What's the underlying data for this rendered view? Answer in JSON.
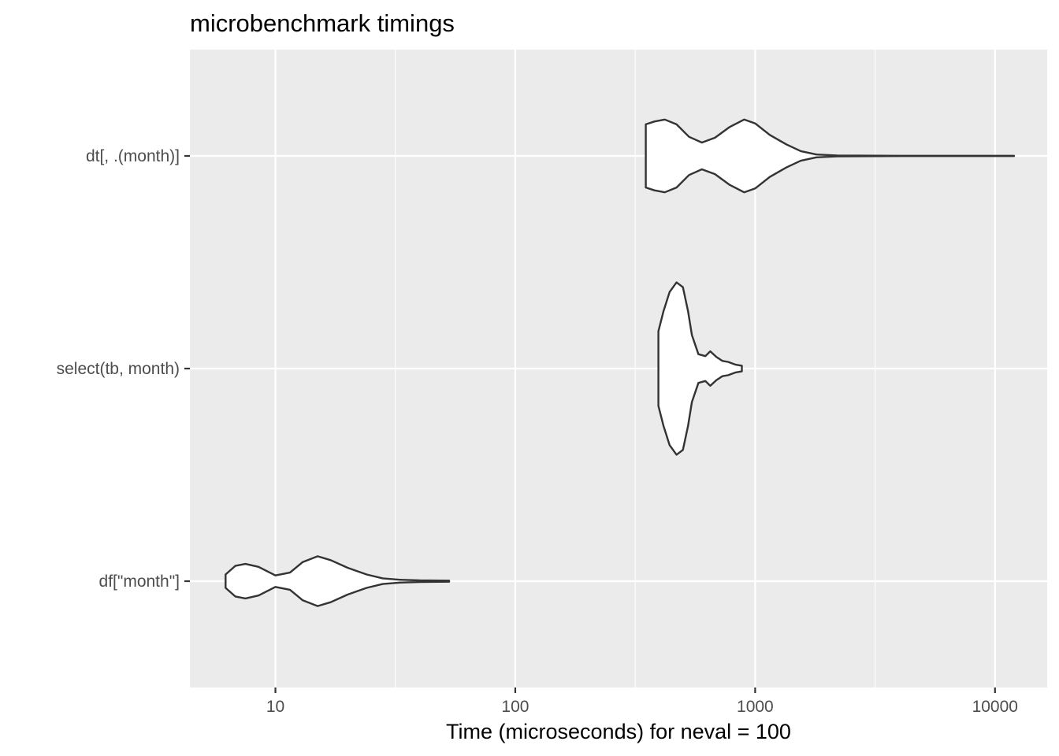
{
  "chart_data": {
    "type": "violin",
    "title": "microbenchmark timings",
    "xlabel": "Time (microseconds) for neval = 100",
    "ylabel": "",
    "x_scale": "log10",
    "xlim": [
      4.4,
      16500
    ],
    "x_ticks": [
      {
        "value": 10,
        "label": "10"
      },
      {
        "value": 100,
        "label": "100"
      },
      {
        "value": 1000,
        "label": "1000"
      },
      {
        "value": 10000,
        "label": "10000"
      }
    ],
    "x_minor_ticks": [
      31.6,
      316.2,
      3162.3
    ],
    "grid": true,
    "categories": [
      "df[\"month\"]",
      "select(tb, month)",
      "dt[, .(month)]"
    ],
    "series": [
      {
        "category": "dt[, .(month)]",
        "min": 350,
        "max": 12000,
        "density": [
          [
            350,
            0.33
          ],
          [
            380,
            0.36
          ],
          [
            420,
            0.38
          ],
          [
            470,
            0.33
          ],
          [
            530,
            0.2
          ],
          [
            600,
            0.14
          ],
          [
            680,
            0.19
          ],
          [
            780,
            0.3
          ],
          [
            900,
            0.38
          ],
          [
            1000,
            0.34
          ],
          [
            1150,
            0.22
          ],
          [
            1350,
            0.12
          ],
          [
            1550,
            0.05
          ],
          [
            1800,
            0.015
          ],
          [
            2200,
            0.005
          ],
          [
            4000,
            0.002
          ],
          [
            12000,
            0.002
          ]
        ]
      },
      {
        "category": "select(tb, month)",
        "min": 395,
        "max": 880,
        "density": [
          [
            395,
            0.39
          ],
          [
            415,
            0.6
          ],
          [
            440,
            0.8
          ],
          [
            470,
            0.9
          ],
          [
            500,
            0.85
          ],
          [
            525,
            0.6
          ],
          [
            545,
            0.35
          ],
          [
            580,
            0.15
          ],
          [
            620,
            0.13
          ],
          [
            650,
            0.18
          ],
          [
            690,
            0.12
          ],
          [
            730,
            0.08
          ],
          [
            770,
            0.07
          ],
          [
            830,
            0.04
          ],
          [
            880,
            0.03
          ]
        ]
      },
      {
        "category": "df[\"month\"]",
        "min": 6.2,
        "max": 53,
        "density": [
          [
            6.2,
            0.07
          ],
          [
            6.8,
            0.16
          ],
          [
            7.5,
            0.18
          ],
          [
            8.5,
            0.15
          ],
          [
            10,
            0.06
          ],
          [
            11.5,
            0.09
          ],
          [
            13,
            0.2
          ],
          [
            15,
            0.26
          ],
          [
            17,
            0.22
          ],
          [
            20,
            0.14
          ],
          [
            24,
            0.07
          ],
          [
            28,
            0.03
          ],
          [
            33,
            0.015
          ],
          [
            40,
            0.008
          ],
          [
            53,
            0.006
          ]
        ]
      }
    ],
    "colors": {
      "panel": "#ebebeb",
      "gridline": "#ffffff",
      "violin_fill": "#ffffff",
      "violin_stroke": "#333333",
      "tick": "#333333"
    }
  }
}
